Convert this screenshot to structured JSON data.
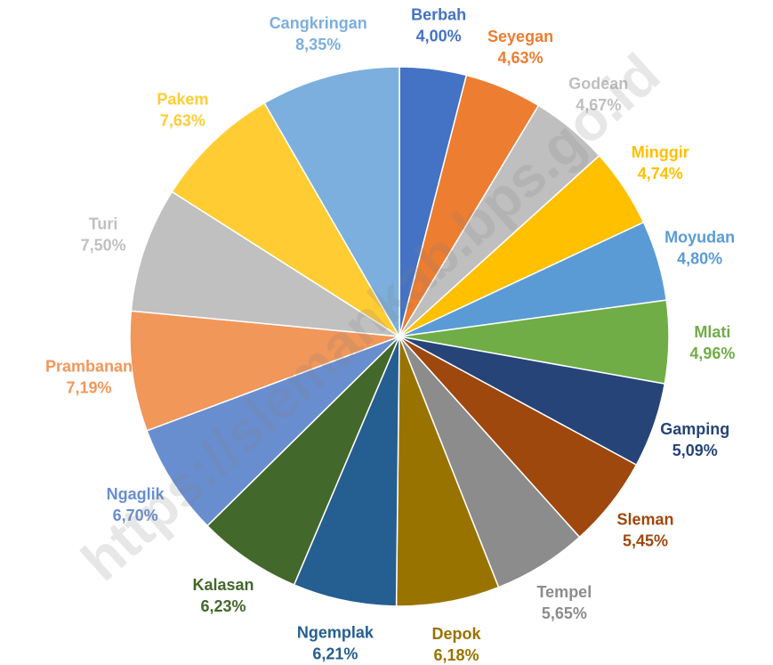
{
  "chart_data": {
    "type": "pie",
    "watermark": "https://slemankab.bps.go.id",
    "categories": [
      "Berbah",
      "Seyegan",
      "Godean",
      "Minggir",
      "Moyudan",
      "Mlati",
      "Gamping",
      "Sleman",
      "Tempel",
      "Depok",
      "Ngemplak",
      "Kalasan",
      "Ngaglik",
      "Prambanan",
      "Turi",
      "Pakem",
      "Cangkringan"
    ],
    "values": [
      4.0,
      4.63,
      4.67,
      4.74,
      4.8,
      4.96,
      5.09,
      5.45,
      5.65,
      6.18,
      6.21,
      6.23,
      6.7,
      7.19,
      7.5,
      7.63,
      8.35
    ],
    "value_labels": [
      "4,00%",
      "4,63%",
      "4,67%",
      "4,74%",
      "4,80%",
      "4,96%",
      "5,09%",
      "5,45%",
      "5,65%",
      "6,18%",
      "6,21%",
      "6,23%",
      "6,70%",
      "7,19%",
      "7,50%",
      "7,63%",
      "8,35%"
    ],
    "colors": [
      "#4472c4",
      "#ed7d31",
      "#bfbfbf",
      "#ffc000",
      "#5b9bd5",
      "#70ad47",
      "#264478",
      "#9e480e",
      "#8c8c8c",
      "#997300",
      "#255e91",
      "#43682b",
      "#698ed0",
      "#f1975a",
      "#c0c0c0",
      "#ffcd33",
      "#7cafdd"
    ]
  }
}
